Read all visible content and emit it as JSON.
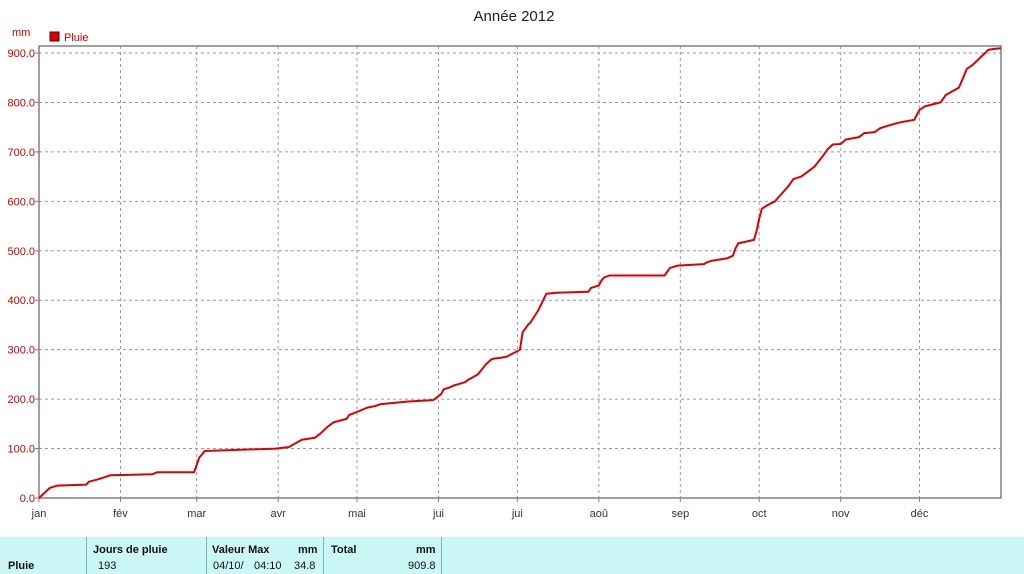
{
  "chart_data": {
    "type": "line",
    "title": "Année 2012",
    "ylabel": "mm",
    "ylim": [
      0,
      910
    ],
    "xlim": [
      0,
      366
    ],
    "yticks": [
      "0.0",
      "100.0",
      "200.0",
      "300.0",
      "400.0",
      "500.0",
      "600.0",
      "700.0",
      "800.0",
      "900.0"
    ],
    "ytick_values": [
      0,
      100,
      200,
      300,
      400,
      500,
      600,
      700,
      800,
      900
    ],
    "xticks": [
      "jan",
      "fév",
      "mar",
      "avr",
      "mai",
      "jui",
      "jui",
      "aoû",
      "sep",
      "oct",
      "nov",
      "déc"
    ],
    "xtick_values": [
      0,
      31,
      60,
      91,
      121,
      152,
      182,
      213,
      244,
      274,
      305,
      335
    ],
    "grid": true,
    "legend_position": "top-left",
    "series": [
      {
        "name": "Pluie",
        "color": "#dd0000",
        "x": [
          0,
          2,
          4,
          7,
          18,
          19,
          22,
          25,
          27,
          43,
          45,
          59,
          61,
          62,
          63,
          90,
          95,
          100,
          105,
          107,
          110,
          112,
          117,
          118,
          120,
          125,
          128,
          130,
          140,
          143,
          150,
          153,
          154,
          156,
          158,
          162,
          163,
          165,
          167,
          170,
          172,
          173,
          176,
          178,
          183,
          184,
          186,
          187,
          190,
          193,
          197,
          209,
          210,
          213,
          214,
          215,
          217,
          238,
          240,
          243,
          253,
          254,
          256,
          262,
          264,
          265,
          266,
          272,
          273,
          274,
          275,
          277,
          280,
          282,
          285,
          287,
          290,
          292,
          295,
          298,
          300,
          302,
          305,
          307,
          312,
          314,
          318,
          320,
          323,
          325,
          328,
          333,
          335,
          337,
          343,
          345,
          350,
          352,
          353,
          355,
          358,
          360,
          361,
          363,
          366
        ],
        "y": [
          0,
          10,
          20,
          25,
          27,
          33,
          37,
          42,
          46,
          48,
          52,
          52,
          82,
          88,
          95,
          100,
          103,
          118,
          122,
          130,
          145,
          153,
          160,
          168,
          172,
          183,
          186,
          190,
          195,
          196,
          198,
          210,
          220,
          223,
          228,
          234,
          238,
          244,
          250,
          270,
          280,
          282,
          284,
          286,
          300,
          335,
          350,
          355,
          380,
          413,
          415,
          417,
          425,
          430,
          440,
          446,
          450,
          450,
          465,
          470,
          473,
          476,
          480,
          485,
          490,
          505,
          515,
          522,
          540,
          565,
          585,
          592,
          600,
          612,
          630,
          645,
          650,
          658,
          670,
          690,
          705,
          715,
          716,
          725,
          730,
          738,
          740,
          748,
          753,
          756,
          760,
          765,
          785,
          792,
          800,
          815,
          830,
          855,
          868,
          875,
          890,
          900,
          906,
          908,
          909.8
        ]
      }
    ]
  },
  "stats": {
    "row_label": "Pluie",
    "jours_header": "Jours de pluie",
    "jours_value": "193",
    "max_header": "Valeur Max",
    "max_unit": "mm",
    "max_date": "04/10/",
    "max_time": "04:10",
    "max_value": "34.8",
    "total_header": "Total",
    "total_unit": "mm",
    "total_value": "909.8"
  }
}
